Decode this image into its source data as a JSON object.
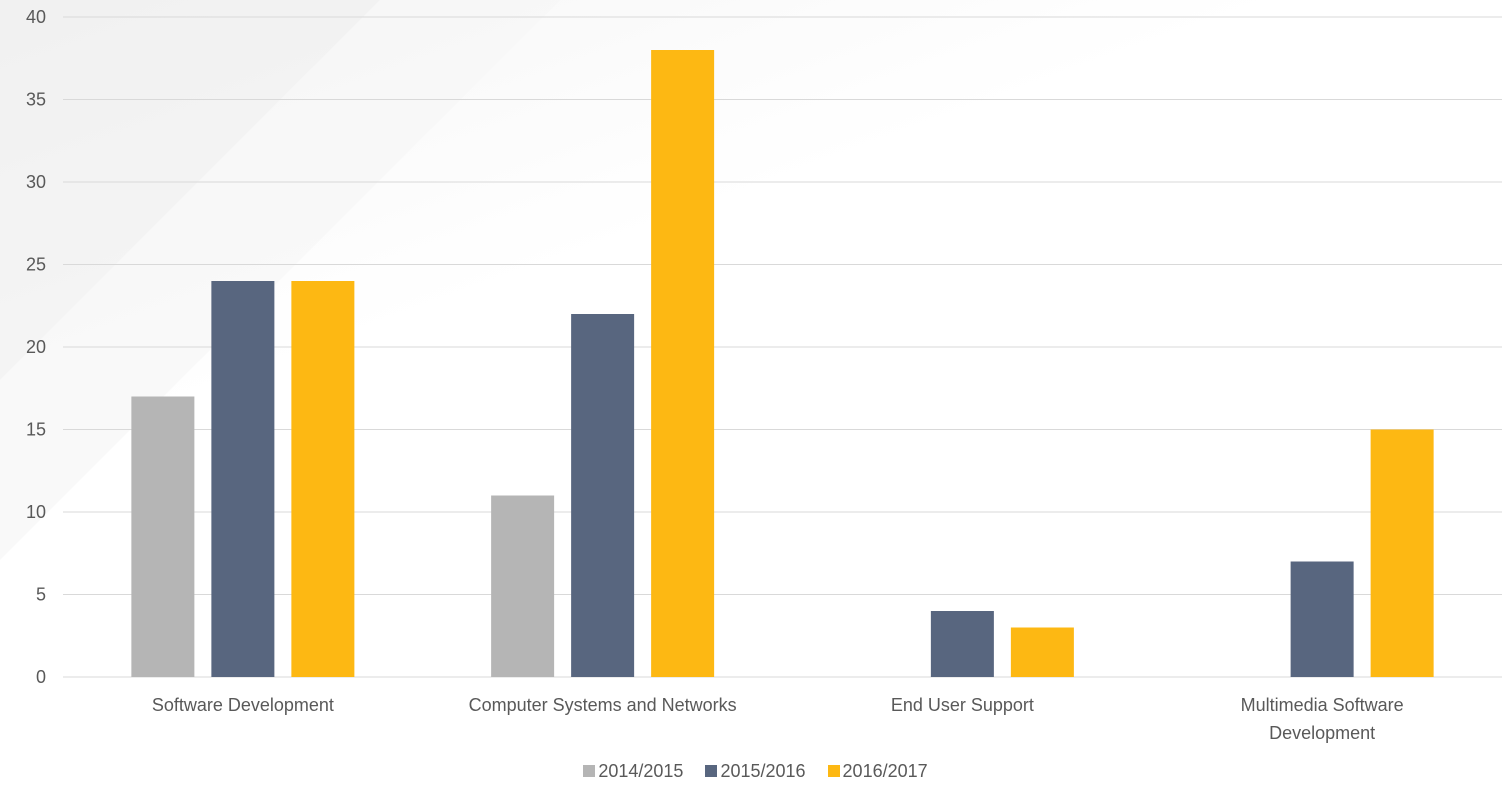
{
  "chart_data": {
    "type": "bar",
    "title": "",
    "xlabel": "",
    "ylabel": "",
    "ylim": [
      0,
      40
    ],
    "yticks": [
      0,
      5,
      10,
      15,
      20,
      25,
      30,
      35,
      40
    ],
    "grid": true,
    "legend_position": "bottom",
    "categories": [
      [
        "Software Development"
      ],
      [
        "Computer Systems and Networks"
      ],
      [
        "End User Support"
      ],
      [
        "Multimedia Software",
        "Development"
      ]
    ],
    "series": [
      {
        "name": "2014/2015",
        "color": "#b5b5b5",
        "values": [
          17,
          11,
          null,
          null
        ]
      },
      {
        "name": "2015/2016",
        "color": "#58667f",
        "values": [
          24,
          22,
          4,
          7
        ]
      },
      {
        "name": "2016/2017",
        "color": "#fdb813",
        "values": [
          24,
          38,
          3,
          15
        ]
      }
    ]
  }
}
